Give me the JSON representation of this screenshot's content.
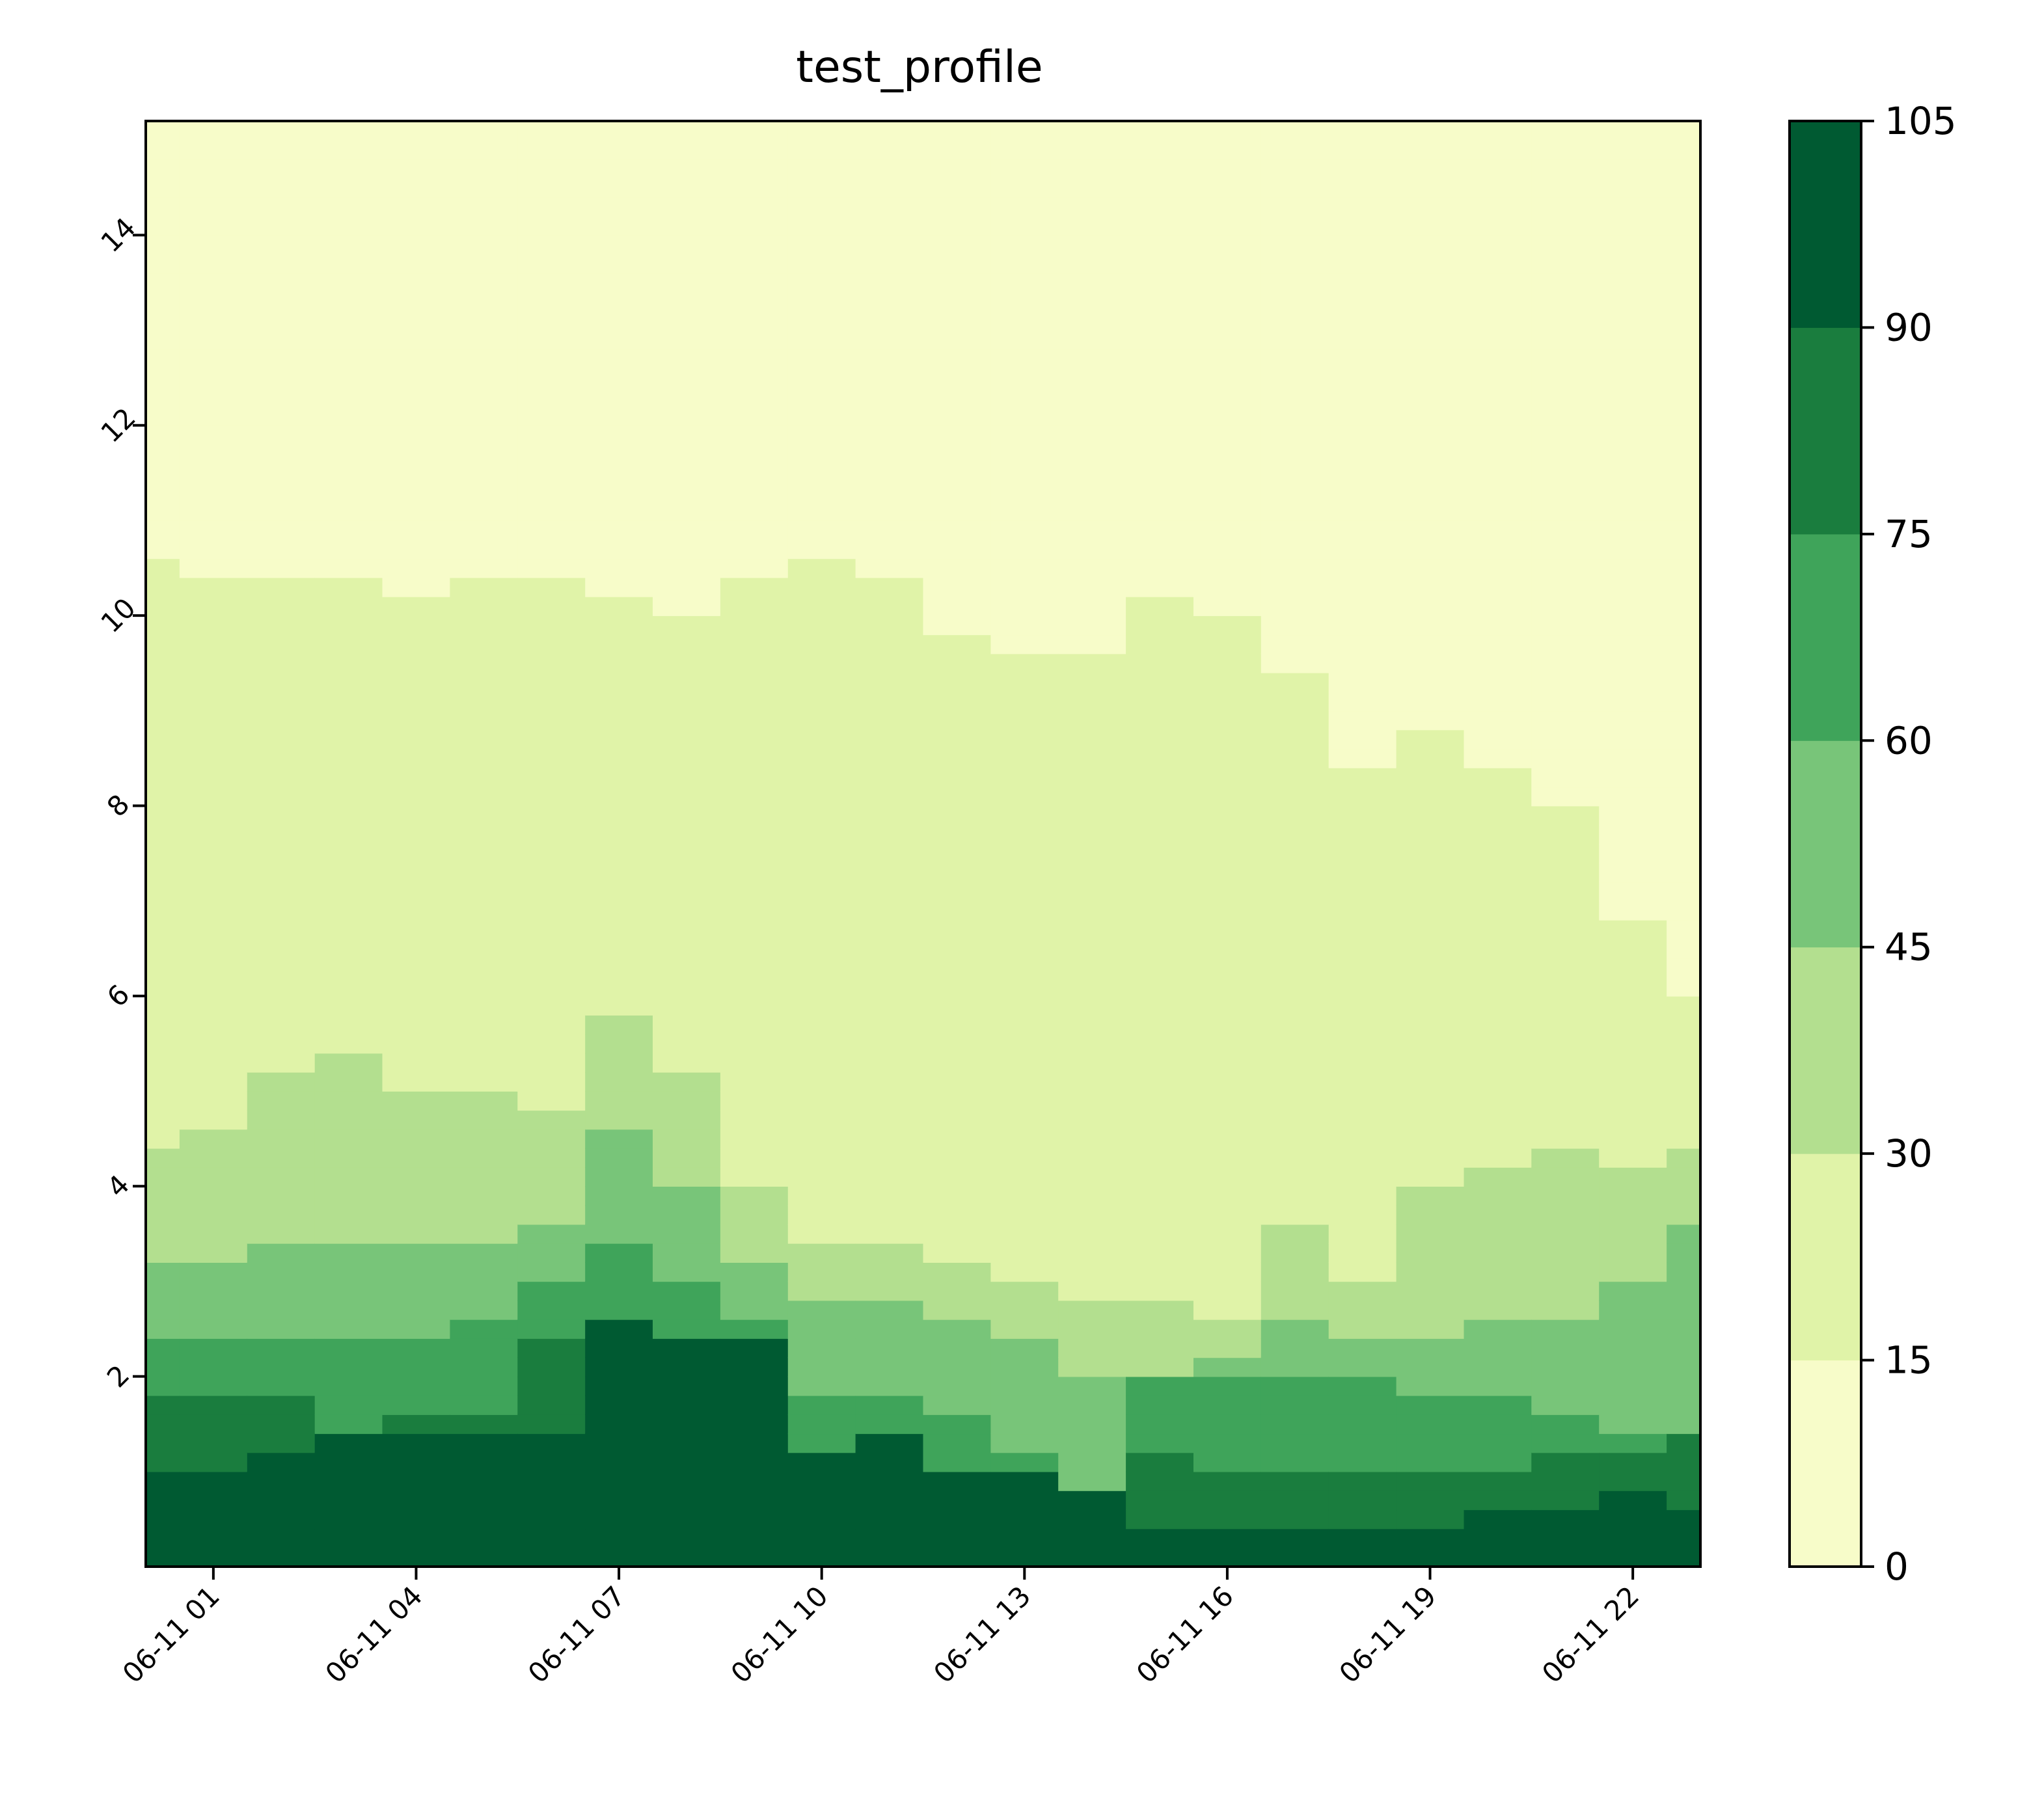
{
  "chart_data": {
    "type": "heatmap",
    "style": "filled-contour",
    "title": "test_profile",
    "xlabel": "",
    "ylabel": "",
    "x_ticks": [
      "06-11 01",
      "06-11 04",
      "06-11 07",
      "06-11 10",
      "06-11 13",
      "06-11 16",
      "06-11 19",
      "06-11 22"
    ],
    "xlim": [
      "06-11 00:00",
      "06-11 23:00"
    ],
    "y_ticks": [
      "2",
      "4",
      "6",
      "8",
      "10",
      "12",
      "14"
    ],
    "ylim": [
      0,
      15.2
    ],
    "colorbar": {
      "levels": [
        0,
        15,
        30,
        45,
        60,
        75,
        90,
        105
      ],
      "tick_labels": [
        "0",
        "15",
        "30",
        "45",
        "60",
        "75",
        "90",
        "105"
      ],
      "colors": [
        "#f7fcc9",
        "#e0f3a8",
        "#b3df8f",
        "#78c579",
        "#3fa45a",
        "#1a7d3e",
        "#005a32"
      ]
    },
    "x_hours": [
      0,
      1,
      2,
      3,
      4,
      5,
      6,
      7,
      8,
      9,
      10,
      11,
      12,
      13,
      14,
      15,
      16,
      17,
      18,
      19,
      20,
      21,
      22,
      23
    ],
    "y_heights": [
      0,
      0.5,
      1,
      1.5,
      2,
      2.5,
      3,
      3.5,
      4,
      4.5,
      5,
      5.5,
      6,
      6.5,
      7,
      7.5,
      8,
      8.5,
      9,
      9.5,
      10,
      10.5,
      11,
      12,
      13,
      14,
      15.2
    ],
    "grid": {
      "level_anchor_heights": [
        [
          0.2,
          0.35,
          0.9,
          1.8,
          2.4,
          3.2,
          4.4,
          5.8,
          10.5,
          11.3
        ],
        [
          0.0,
          0.5,
          1.0,
          1.7,
          2.4,
          3.2,
          4.5,
          5.9,
          10.4,
          11.25
        ],
        [
          0.0,
          0.6,
          1.1,
          1.7,
          2.3,
          3.4,
          5.2,
          7.5,
          10.4,
          11.25
        ],
        [
          0.0,
          0.8,
          1.3,
          1.4,
          2.3,
          3.3,
          5.4,
          8.8,
          10.4,
          11.2
        ],
        [
          0.0,
          0.9,
          1.4,
          1.5,
          2.4,
          3.3,
          5.0,
          6.9,
          10.2,
          11.1
        ],
        [
          0.0,
          0.9,
          1.3,
          1.6,
          2.6,
          3.3,
          4.9,
          7.2,
          10.3,
          11.2
        ],
        [
          0.0,
          0.9,
          1.4,
          2.3,
          2.9,
          3.5,
          4.8,
          6.6,
          10.3,
          11.2
        ],
        [
          0.0,
          0.8,
          2.5,
          2.5,
          3.3,
          4.6,
          5.8,
          7.5,
          10.1,
          11.1
        ],
        [
          0.0,
          0.8,
          2.4,
          2.4,
          3.0,
          4.0,
          5.2,
          8.1,
          10.0,
          10.6
        ],
        [
          0.0,
          0.8,
          2.3,
          2.3,
          2.6,
          3.2,
          4.0,
          5.0,
          10.3,
          10.35
        ],
        [
          0.0,
          0.6,
          1.1,
          1.1,
          1.8,
          2.8,
          3.4,
          4.1,
          10.6,
          11.3
        ],
        [
          0.0,
          0.6,
          1.3,
          1.3,
          1.7,
          2.8,
          3.3,
          3.9,
          10.4,
          11.1
        ],
        [
          0.0,
          0.6,
          1.0,
          1.0,
          1.6,
          2.5,
          3.1,
          3.7,
          9.8,
          11.0
        ],
        [
          0.0,
          0.6,
          1.0,
          1.0,
          1.1,
          2.4,
          2.9,
          3.5,
          9.5,
          11.6
        ],
        [
          0.0,
          0.5,
          0.7,
          0.7,
          0.8,
          2.0,
          2.8,
          3.3,
          9.6,
          11.6
        ],
        [
          0.0,
          0.3,
          0.4,
          1.2,
          1.9,
          2.0,
          2.7,
          3.0,
          10.1,
          11.65
        ],
        [
          0.0,
          0.2,
          0.3,
          1.0,
          2.0,
          2.1,
          2.6,
          6.0,
          10.0,
          11.5
        ],
        [
          0.0,
          0.2,
          0.3,
          1.0,
          1.9,
          2.6,
          3.6,
          6.4,
          9.3,
          11.0
        ],
        [
          0.0,
          0.2,
          0.4,
          1.0,
          1.9,
          2.3,
          3.0,
          5.7,
          8.3,
          10.8
        ],
        [
          0.0,
          0.3,
          0.4,
          1.0,
          1.8,
          2.4,
          4.0,
          5.7,
          8.8,
          11.6
        ],
        [
          0.0,
          0.3,
          0.5,
          1.0,
          1.8,
          2.5,
          4.2,
          5.4,
          8.4,
          11.2
        ],
        [
          0.0,
          0.35,
          0.6,
          1.1,
          1.5,
          2.5,
          4.3,
          5.2,
          8.0,
          11.1
        ],
        [
          0.0,
          0.4,
          0.7,
          1.2,
          1.3,
          3.0,
          4.2,
          5.0,
          6.7,
          11.5
        ],
        [
          0.0,
          0.5,
          0.6,
          1.3,
          1.4,
          3.5,
          4.3,
          4.7,
          6.0,
          11.3
        ]
      ]
    }
  }
}
